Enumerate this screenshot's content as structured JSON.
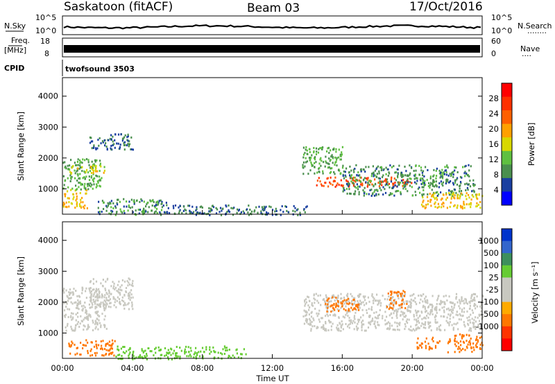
{
  "header": {
    "station": "Saskatoon (fitACF)",
    "beam": "Beam 03",
    "date": "17/Oct/2016"
  },
  "noise_panel": {
    "left_label": "N.Sky",
    "left_ticks": [
      "10^5",
      "10^0"
    ],
    "right_ticks": [
      "10^5",
      "10^0"
    ],
    "right_label": "N.Search",
    "right_dots": "........"
  },
  "freq_panel": {
    "left_label_line1": "Freq.",
    "left_label_line2": "[MHz]",
    "left_ticks": [
      "18",
      "8"
    ],
    "right_ticks": [
      "60",
      "0"
    ],
    "right_label": "Nave",
    "right_dots": "...."
  },
  "cpid_panel": {
    "label": "CPID",
    "value": "twofsound 3503"
  },
  "colors": {
    "power_scale": [
      "#0000ff",
      "#1a3fa0",
      "#4a8f4e",
      "#5fc040",
      "#d8d800",
      "#ffa000",
      "#ff6000",
      "#ff3000",
      "#ff0000"
    ],
    "velocity_scale": [
      "#0033cc",
      "#3366cc",
      "#3d8f5c",
      "#66cc33",
      "#c8c8c0",
      "#c8c8c0",
      "#ffaa00",
      "#ff7700",
      "#ff3300",
      "#ff0000"
    ]
  },
  "chart_data": [
    {
      "type": "heatmap",
      "title": "",
      "xlabel": "Time UT",
      "ylabel": "Slant Range [km]",
      "xlim": [
        0,
        24
      ],
      "ylim": [
        180,
        4600
      ],
      "x_ticks": [
        "00:00",
        "04:00",
        "08:00",
        "12:00",
        "16:00",
        "20:00",
        "00:00"
      ],
      "y_ticks": [
        1000,
        2000,
        3000,
        4000
      ],
      "colorbar": {
        "label": "Power [dB]",
        "range": [
          0,
          32
        ],
        "ticks": [
          4,
          8,
          12,
          16,
          20,
          24,
          28
        ]
      },
      "regions": [
        {
          "t": [
            0.0,
            1.4
          ],
          "range": [
            400,
            1000
          ],
          "value": 20
        },
        {
          "t": [
            0.0,
            2.2
          ],
          "range": [
            1000,
            2000
          ],
          "value": 12
        },
        {
          "t": [
            0.4,
            2.4
          ],
          "range": [
            1500,
            1800
          ],
          "value": 18
        },
        {
          "t": [
            1.5,
            4.0
          ],
          "range": [
            2300,
            2800
          ],
          "value": 8
        },
        {
          "t": [
            2.0,
            6.0
          ],
          "range": [
            180,
            700
          ],
          "value": 10
        },
        {
          "t": [
            6.0,
            14.0
          ],
          "range": [
            180,
            500
          ],
          "value": 8
        },
        {
          "t": [
            13.7,
            16.0
          ],
          "range": [
            1500,
            2400
          ],
          "value": 12
        },
        {
          "t": [
            14.5,
            20.0
          ],
          "range": [
            1100,
            1400
          ],
          "value": 28
        },
        {
          "t": [
            16.0,
            23.6
          ],
          "range": [
            800,
            1800
          ],
          "value": 10
        },
        {
          "t": [
            20.5,
            24.0
          ],
          "range": [
            400,
            900
          ],
          "value": 20
        }
      ]
    },
    {
      "type": "heatmap",
      "title": "",
      "xlabel": "Time UT",
      "ylabel": "Slant Range [km]",
      "xlim": [
        0,
        24
      ],
      "ylim": [
        180,
        4600
      ],
      "x_ticks": [
        "00:00",
        "04:00",
        "08:00",
        "12:00",
        "16:00",
        "20:00",
        "00:00"
      ],
      "y_ticks": [
        1000,
        2000,
        3000,
        4000
      ],
      "colorbar": {
        "label": "Velocity [m s⁻¹]",
        "ticks": [
          1000,
          500,
          100,
          25,
          -25,
          -100,
          -500,
          -1000
        ]
      },
      "regions": [
        {
          "t": [
            0.0,
            2.5
          ],
          "range": [
            1100,
            2500
          ],
          "value": 0
        },
        {
          "t": [
            1.5,
            4.0
          ],
          "range": [
            1800,
            2800
          ],
          "value": 0
        },
        {
          "t": [
            0.3,
            3.0
          ],
          "range": [
            300,
            800
          ],
          "value": -300
        },
        {
          "t": [
            3.0,
            10.5
          ],
          "range": [
            180,
            600
          ],
          "value": 60
        },
        {
          "t": [
            13.7,
            24.0
          ],
          "range": [
            1100,
            2300
          ],
          "value": 0
        },
        {
          "t": [
            15.0,
            17.0
          ],
          "range": [
            1700,
            2200
          ],
          "value": -300
        },
        {
          "t": [
            18.5,
            19.7
          ],
          "range": [
            1800,
            2400
          ],
          "value": -300
        },
        {
          "t": [
            20.2,
            21.6
          ],
          "range": [
            500,
            900
          ],
          "value": -300
        },
        {
          "t": [
            22.0,
            24.0
          ],
          "range": [
            400,
            1000
          ],
          "value": -200
        }
      ]
    }
  ]
}
